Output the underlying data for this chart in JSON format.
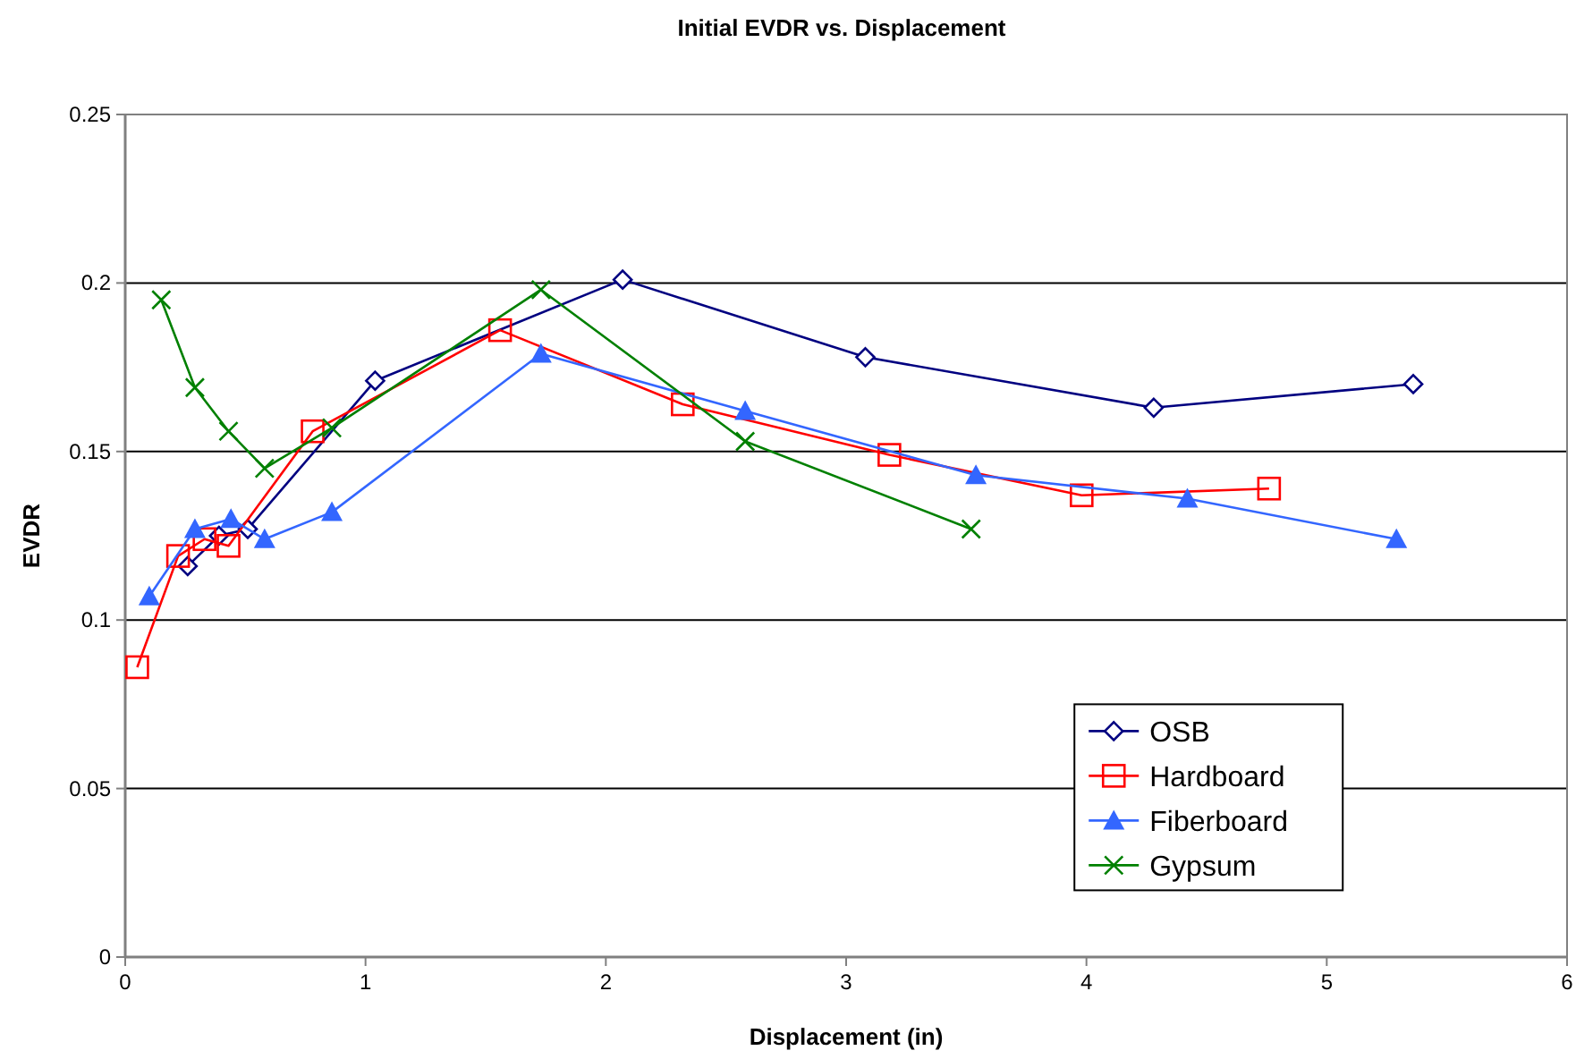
{
  "chart_data": {
    "type": "line",
    "title": "Initial EVDR vs. Displacement",
    "xlabel": "Displacement (in)",
    "ylabel": "EVDR",
    "xlim": [
      0,
      6
    ],
    "xticks": [
      0,
      1,
      2,
      3,
      4,
      5,
      6
    ],
    "ylim": [
      0,
      0.25
    ],
    "yticks": [
      0,
      0.05,
      0.1,
      0.15,
      0.2,
      0.25
    ],
    "grid": "y",
    "legend": "bottom right",
    "series": [
      {
        "name": "OSB",
        "color": "#000080",
        "marker": "diamond",
        "x": [
          0.26,
          0.39,
          0.51,
          1.04,
          2.07,
          3.08,
          4.28,
          5.36
        ],
        "values": [
          0.116,
          0.125,
          0.127,
          0.171,
          0.201,
          0.178,
          0.163,
          0.17
        ]
      },
      {
        "name": "Hardboard",
        "color": "#ff0000",
        "marker": "square",
        "x": [
          0.05,
          0.22,
          0.33,
          0.43,
          0.78,
          1.56,
          2.32,
          3.18,
          3.98,
          4.76
        ],
        "values": [
          0.086,
          0.119,
          0.124,
          0.122,
          0.156,
          0.186,
          0.164,
          0.149,
          0.137,
          0.139
        ]
      },
      {
        "name": "Fiberboard",
        "color": "#3366ff",
        "marker": "triangle",
        "x": [
          0.1,
          0.29,
          0.44,
          0.58,
          0.86,
          1.73,
          2.58,
          3.54,
          4.42,
          5.29
        ],
        "values": [
          0.107,
          0.127,
          0.13,
          0.124,
          0.132,
          0.179,
          0.162,
          0.143,
          0.136,
          0.124
        ]
      },
      {
        "name": "Gypsum",
        "color": "#008000",
        "marker": "cross",
        "x": [
          0.15,
          0.29,
          0.43,
          0.58,
          0.86,
          1.73,
          2.58,
          3.52
        ],
        "values": [
          0.195,
          0.169,
          0.156,
          0.145,
          0.157,
          0.198,
          0.153,
          0.127
        ]
      }
    ]
  }
}
